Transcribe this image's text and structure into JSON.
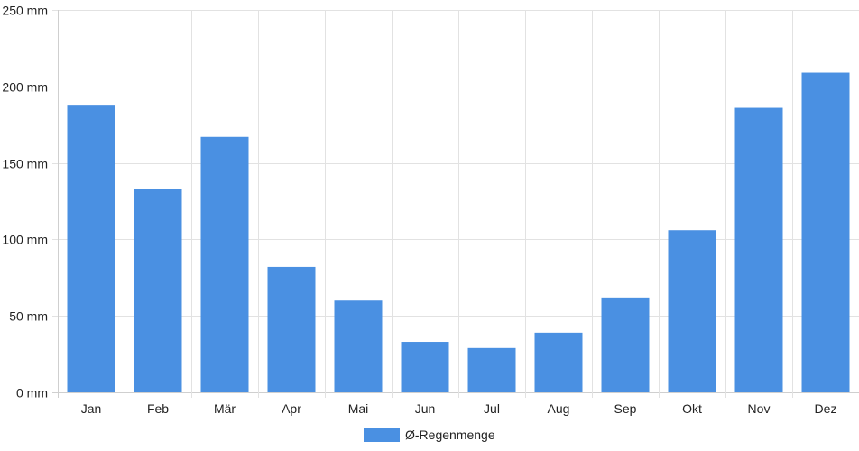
{
  "chart_data": {
    "type": "bar",
    "categories": [
      "Jan",
      "Feb",
      "Mär",
      "Apr",
      "Mai",
      "Jun",
      "Jul",
      "Aug",
      "Sep",
      "Okt",
      "Nov",
      "Dez"
    ],
    "series": [
      {
        "name": "Ø-Regenmenge",
        "values": [
          188,
          133,
          167,
          82,
          60,
          33,
          29,
          39,
          62,
          106,
          186,
          209
        ],
        "color": "#4a90e2"
      }
    ],
    "ylim": [
      0,
      250
    ],
    "y_ticks": [
      0,
      50,
      100,
      150,
      200,
      250
    ],
    "y_tick_labels": [
      "0 mm",
      "50 mm",
      "100 mm",
      "150 mm",
      "200 mm",
      "250 mm"
    ],
    "unit": "mm",
    "grid": true,
    "legend_position": "bottom-center",
    "title": "",
    "xlabel": "",
    "ylabel": ""
  }
}
